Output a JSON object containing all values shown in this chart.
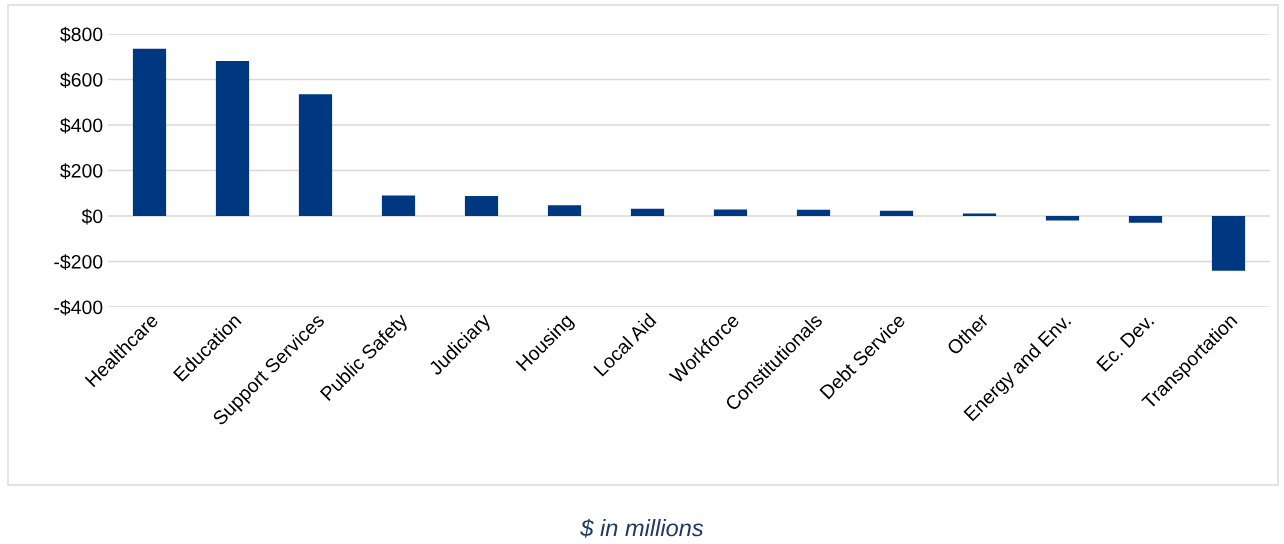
{
  "chart_data": {
    "type": "bar",
    "categories": [
      "Healthcare",
      "Education",
      "Support Services",
      "Public Safety",
      "Judiciary",
      "Housing",
      "Local Aid",
      "Workforce",
      "Constitutionals",
      "Debt Service",
      "Other",
      "Energy and Env.",
      "Ec. Dev.",
      "Transportation"
    ],
    "values": [
      735,
      681,
      535,
      90,
      88,
      47,
      32,
      29,
      27,
      23,
      11,
      -20,
      -30,
      -241
    ],
    "color": "#003781",
    "xlabel": "$ in millions",
    "ylim": [
      -400,
      800
    ],
    "yticks": [
      {
        "value": -400,
        "label": "-$400"
      },
      {
        "value": -200,
        "label": "-$200"
      },
      {
        "value": 0,
        "label": "$0"
      },
      {
        "value": 200,
        "label": "$200"
      },
      {
        "value": 400,
        "label": "$400"
      },
      {
        "value": 600,
        "label": "$600"
      },
      {
        "value": 800,
        "label": "$800"
      }
    ],
    "grid": "y",
    "legend": false
  }
}
